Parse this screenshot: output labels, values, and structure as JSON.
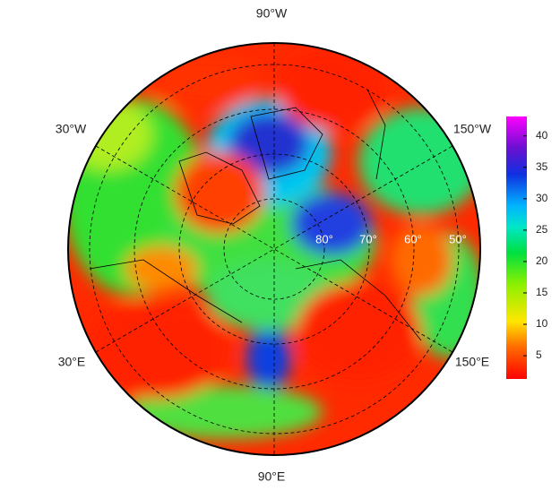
{
  "map": {
    "lon_labels": [
      "90°W",
      "30°W",
      "150°W",
      "30°E",
      "150°E",
      "90°E"
    ],
    "lat_labels": [
      "80°",
      "70°",
      "60°",
      "50°"
    ]
  },
  "colorbar": {
    "lim": [
      1.3,
      43.1
    ],
    "ticks": [
      5,
      10,
      15,
      20,
      25,
      30,
      35,
      40
    ]
  }
}
